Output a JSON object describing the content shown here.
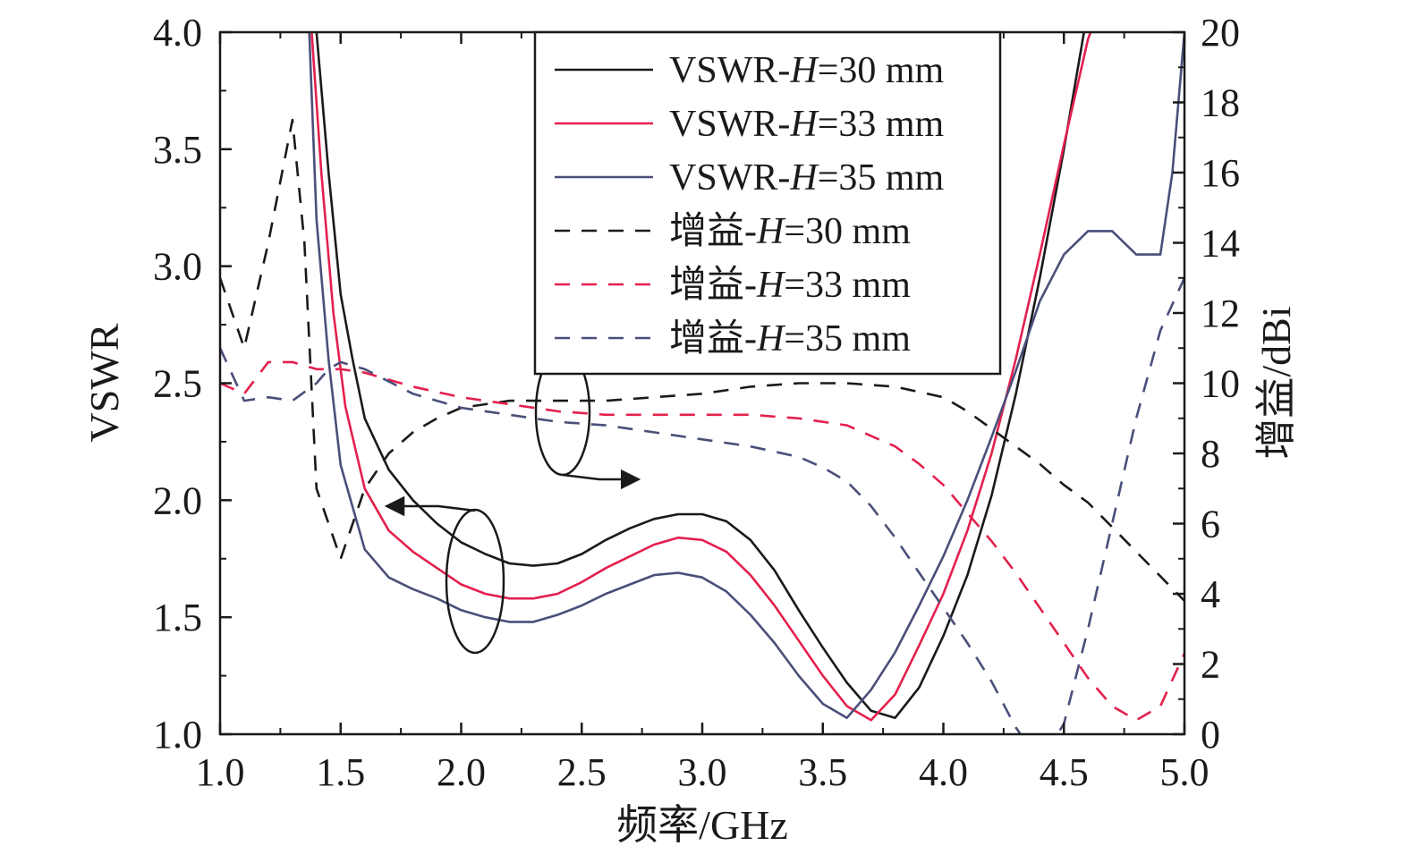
{
  "chart_data": {
    "type": "line",
    "xlabel": "频率/GHz",
    "ylabel": "VSWR",
    "y2label": "增益/dBi",
    "xlim": [
      1.0,
      5.0
    ],
    "ylim": [
      1.0,
      4.0
    ],
    "y2lim": [
      0,
      20
    ],
    "xticks": [
      "1.0",
      "1.5",
      "2.0",
      "2.5",
      "3.0",
      "3.5",
      "4.0",
      "4.5",
      "5.0"
    ],
    "yticks": [
      "1.0",
      "1.5",
      "2.0",
      "2.5",
      "3.0",
      "3.5",
      "4.0"
    ],
    "y2ticks": [
      "0",
      "2",
      "4",
      "6",
      "8",
      "10",
      "12",
      "14",
      "16",
      "18",
      "20"
    ],
    "grid": false,
    "legend_position": "top-center",
    "series": [
      {
        "name": "VSWR-H=30 mm",
        "name_prefix": "VSWR-",
        "name_var": "H",
        "name_suffix": "=30 mm",
        "axis": "left",
        "style": "solid",
        "color": "#1a1a1a",
        "points": [
          [
            1.37,
            4.2
          ],
          [
            1.4,
            4.0
          ],
          [
            1.45,
            3.4
          ],
          [
            1.5,
            2.88
          ],
          [
            1.55,
            2.6
          ],
          [
            1.6,
            2.35
          ],
          [
            1.7,
            2.13
          ],
          [
            1.8,
            2.0
          ],
          [
            1.9,
            1.9
          ],
          [
            2.0,
            1.82
          ],
          [
            2.1,
            1.77
          ],
          [
            2.2,
            1.73
          ],
          [
            2.3,
            1.72
          ],
          [
            2.4,
            1.73
          ],
          [
            2.5,
            1.77
          ],
          [
            2.6,
            1.83
          ],
          [
            2.7,
            1.88
          ],
          [
            2.8,
            1.92
          ],
          [
            2.9,
            1.94
          ],
          [
            3.0,
            1.94
          ],
          [
            3.1,
            1.91
          ],
          [
            3.2,
            1.83
          ],
          [
            3.3,
            1.7
          ],
          [
            3.4,
            1.53
          ],
          [
            3.5,
            1.37
          ],
          [
            3.6,
            1.22
          ],
          [
            3.7,
            1.1
          ],
          [
            3.8,
            1.07
          ],
          [
            3.9,
            1.2
          ],
          [
            4.0,
            1.42
          ],
          [
            4.1,
            1.68
          ],
          [
            4.2,
            2.02
          ],
          [
            4.3,
            2.45
          ],
          [
            4.4,
            2.95
          ],
          [
            4.5,
            3.5
          ],
          [
            4.6,
            4.1
          ],
          [
            4.63,
            4.25
          ]
        ]
      },
      {
        "name": "VSWR-H=33 mm",
        "name_prefix": "VSWR-",
        "name_var": "H",
        "name_suffix": "=33 mm",
        "axis": "left",
        "style": "solid",
        "color": "#e3204d",
        "points": [
          [
            1.35,
            4.2
          ],
          [
            1.38,
            4.0
          ],
          [
            1.42,
            3.4
          ],
          [
            1.47,
            2.8
          ],
          [
            1.52,
            2.4
          ],
          [
            1.6,
            2.05
          ],
          [
            1.7,
            1.87
          ],
          [
            1.8,
            1.78
          ],
          [
            1.9,
            1.71
          ],
          [
            2.0,
            1.64
          ],
          [
            2.1,
            1.6
          ],
          [
            2.2,
            1.58
          ],
          [
            2.3,
            1.58
          ],
          [
            2.4,
            1.6
          ],
          [
            2.5,
            1.65
          ],
          [
            2.6,
            1.71
          ],
          [
            2.7,
            1.76
          ],
          [
            2.8,
            1.81
          ],
          [
            2.9,
            1.84
          ],
          [
            3.0,
            1.83
          ],
          [
            3.1,
            1.78
          ],
          [
            3.2,
            1.68
          ],
          [
            3.3,
            1.55
          ],
          [
            3.4,
            1.4
          ],
          [
            3.5,
            1.25
          ],
          [
            3.6,
            1.12
          ],
          [
            3.7,
            1.06
          ],
          [
            3.8,
            1.17
          ],
          [
            3.9,
            1.38
          ],
          [
            4.0,
            1.6
          ],
          [
            4.1,
            1.87
          ],
          [
            4.2,
            2.2
          ],
          [
            4.3,
            2.6
          ],
          [
            4.4,
            3.05
          ],
          [
            4.5,
            3.52
          ],
          [
            4.6,
            3.97
          ],
          [
            4.7,
            4.25
          ]
        ]
      },
      {
        "name": "VSWR-H=35 mm",
        "name_prefix": "VSWR-",
        "name_var": "H",
        "name_suffix": "=35 mm",
        "axis": "left",
        "style": "solid",
        "color": "#4a4f7a",
        "points": [
          [
            1.37,
            4.0
          ],
          [
            1.4,
            3.2
          ],
          [
            1.45,
            2.6
          ],
          [
            1.5,
            2.15
          ],
          [
            1.6,
            1.79
          ],
          [
            1.7,
            1.67
          ],
          [
            1.8,
            1.62
          ],
          [
            1.9,
            1.58
          ],
          [
            2.0,
            1.53
          ],
          [
            2.1,
            1.5
          ],
          [
            2.2,
            1.48
          ],
          [
            2.3,
            1.48
          ],
          [
            2.4,
            1.51
          ],
          [
            2.5,
            1.55
          ],
          [
            2.6,
            1.6
          ],
          [
            2.7,
            1.64
          ],
          [
            2.8,
            1.68
          ],
          [
            2.9,
            1.69
          ],
          [
            3.0,
            1.67
          ],
          [
            3.1,
            1.61
          ],
          [
            3.2,
            1.51
          ],
          [
            3.3,
            1.39
          ],
          [
            3.4,
            1.25
          ],
          [
            3.5,
            1.13
          ],
          [
            3.6,
            1.07
          ],
          [
            3.7,
            1.19
          ],
          [
            3.8,
            1.35
          ],
          [
            3.9,
            1.55
          ],
          [
            4.0,
            1.76
          ],
          [
            4.1,
            2.0
          ],
          [
            4.2,
            2.27
          ],
          [
            4.3,
            2.55
          ],
          [
            4.4,
            2.85
          ],
          [
            4.5,
            3.05
          ],
          [
            4.6,
            3.15
          ],
          [
            4.7,
            3.15
          ],
          [
            4.8,
            3.05
          ],
          [
            4.9,
            3.05
          ],
          [
            4.95,
            3.4
          ],
          [
            5.0,
            4.0
          ]
        ]
      },
      {
        "name": "增益-H=30 mm",
        "name_prefix": "增益-",
        "name_var": "H",
        "name_suffix": "=30 mm",
        "axis": "right",
        "style": "dashed",
        "color": "#1a1a1a",
        "points": [
          [
            1.0,
            13.0
          ],
          [
            1.1,
            11.0
          ],
          [
            1.2,
            14.0
          ],
          [
            1.3,
            17.5
          ],
          [
            1.35,
            14.0
          ],
          [
            1.4,
            7.0
          ],
          [
            1.5,
            5.0
          ],
          [
            1.6,
            7.0
          ],
          [
            1.7,
            8.0
          ],
          [
            1.8,
            8.6
          ],
          [
            1.9,
            9.0
          ],
          [
            2.0,
            9.3
          ],
          [
            2.2,
            9.5
          ],
          [
            2.4,
            9.5
          ],
          [
            2.6,
            9.5
          ],
          [
            2.8,
            9.6
          ],
          [
            3.0,
            9.7
          ],
          [
            3.2,
            9.9
          ],
          [
            3.4,
            10.0
          ],
          [
            3.6,
            10.0
          ],
          [
            3.8,
            9.9
          ],
          [
            4.0,
            9.6
          ],
          [
            4.1,
            9.2
          ],
          [
            4.2,
            8.7
          ],
          [
            4.3,
            8.2
          ],
          [
            4.4,
            7.7
          ],
          [
            4.5,
            7.1
          ],
          [
            4.6,
            6.6
          ],
          [
            4.7,
            5.9
          ],
          [
            4.8,
            5.2
          ],
          [
            4.9,
            4.5
          ],
          [
            5.0,
            3.8
          ]
        ]
      },
      {
        "name": "增益-H=33 mm",
        "name_prefix": "增益-",
        "name_var": "H",
        "name_suffix": "=33 mm",
        "axis": "right",
        "style": "dashed",
        "color": "#e3204d",
        "points": [
          [
            1.0,
            10.0
          ],
          [
            1.1,
            9.7
          ],
          [
            1.2,
            10.6
          ],
          [
            1.3,
            10.6
          ],
          [
            1.4,
            10.4
          ],
          [
            1.5,
            10.4
          ],
          [
            1.6,
            10.3
          ],
          [
            1.8,
            9.9
          ],
          [
            2.0,
            9.6
          ],
          [
            2.2,
            9.4
          ],
          [
            2.4,
            9.2
          ],
          [
            2.6,
            9.1
          ],
          [
            2.8,
            9.1
          ],
          [
            3.0,
            9.1
          ],
          [
            3.2,
            9.1
          ],
          [
            3.4,
            9.0
          ],
          [
            3.6,
            8.8
          ],
          [
            3.8,
            8.2
          ],
          [
            3.9,
            7.7
          ],
          [
            4.0,
            7.1
          ],
          [
            4.1,
            6.3
          ],
          [
            4.2,
            5.5
          ],
          [
            4.3,
            4.6
          ],
          [
            4.4,
            3.6
          ],
          [
            4.5,
            2.6
          ],
          [
            4.6,
            1.6
          ],
          [
            4.7,
            0.8
          ],
          [
            4.8,
            0.4
          ],
          [
            4.9,
            0.8
          ],
          [
            5.0,
            2.3
          ]
        ]
      },
      {
        "name": "增益-H=35 mm",
        "name_prefix": "增益-",
        "name_var": "H",
        "name_suffix": "=35 mm",
        "axis": "right",
        "style": "dashed",
        "color": "#4a4f7a",
        "points": [
          [
            1.0,
            11.0
          ],
          [
            1.1,
            9.5
          ],
          [
            1.2,
            9.6
          ],
          [
            1.3,
            9.5
          ],
          [
            1.4,
            10.0
          ],
          [
            1.45,
            10.4
          ],
          [
            1.5,
            10.6
          ],
          [
            1.6,
            10.4
          ],
          [
            1.8,
            9.7
          ],
          [
            2.0,
            9.3
          ],
          [
            2.2,
            9.1
          ],
          [
            2.4,
            8.9
          ],
          [
            2.6,
            8.8
          ],
          [
            2.8,
            8.6
          ],
          [
            3.0,
            8.4
          ],
          [
            3.2,
            8.2
          ],
          [
            3.4,
            7.9
          ],
          [
            3.5,
            7.6
          ],
          [
            3.6,
            7.2
          ],
          [
            3.7,
            6.5
          ],
          [
            3.8,
            5.6
          ],
          [
            3.9,
            4.6
          ],
          [
            4.0,
            3.6
          ],
          [
            4.1,
            2.6
          ],
          [
            4.2,
            1.5
          ],
          [
            4.3,
            0.2
          ],
          [
            4.4,
            -0.8
          ],
          [
            4.5,
            0.3
          ],
          [
            4.6,
            3.0
          ],
          [
            4.7,
            6.0
          ],
          [
            4.8,
            9.0
          ],
          [
            4.9,
            11.5
          ],
          [
            5.0,
            13.0
          ]
        ]
      }
    ]
  }
}
